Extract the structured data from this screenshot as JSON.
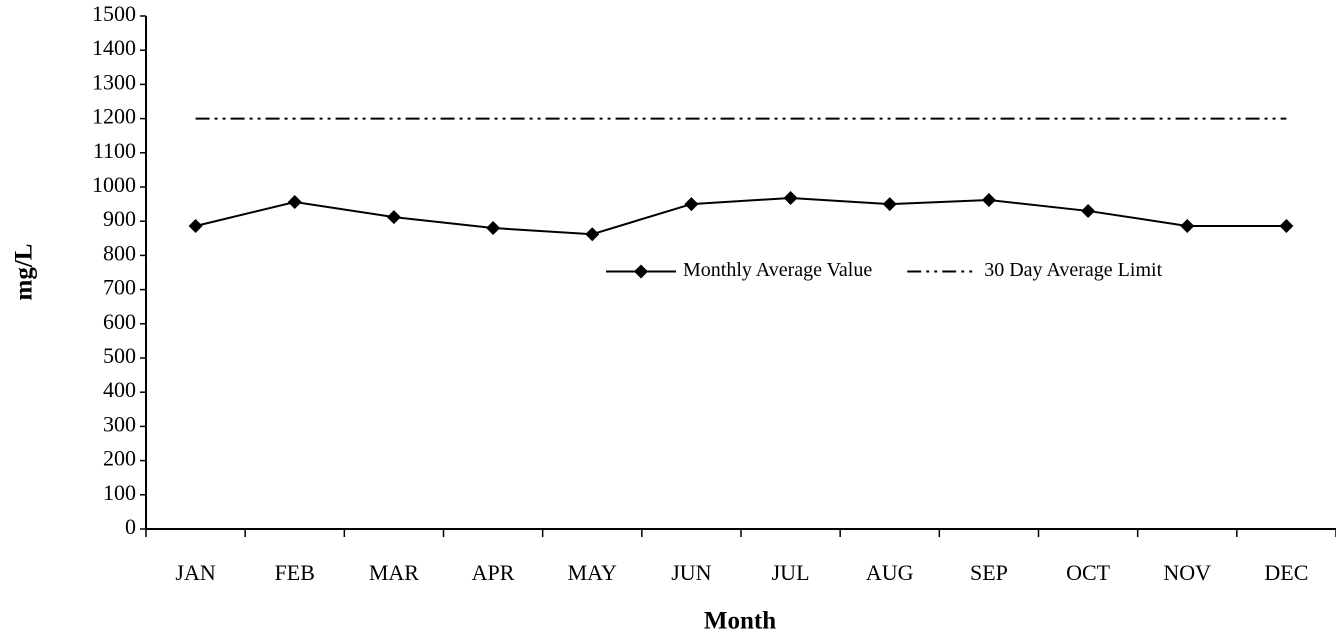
{
  "chart_data": {
    "type": "line",
    "x_label": "Month",
    "y_label": "mg/L",
    "categories": [
      "JAN",
      "FEB",
      "MAR",
      "APR",
      "MAY",
      "JUN",
      "JUL",
      "AUG",
      "SEP",
      "OCT",
      "NOV",
      "DEC"
    ],
    "series": [
      {
        "name": "Monthly Average Value",
        "color": "#000000",
        "marker": "diamond",
        "dash": "solid",
        "values": [
          886,
          956,
          912,
          880,
          862,
          950,
          968,
          950,
          962,
          930,
          886,
          886
        ]
      },
      {
        "name": "30 Day Average Limit",
        "color": "#000000",
        "marker": "none",
        "dash": "dashdot",
        "values": [
          1200,
          1200,
          1200,
          1200,
          1200,
          1200,
          1200,
          1200,
          1200,
          1200,
          1200,
          1200
        ]
      }
    ],
    "ylim": [
      0,
      1500
    ],
    "yticks": [
      0,
      100,
      200,
      300,
      400,
      500,
      600,
      700,
      800,
      900,
      1000,
      1100,
      1200,
      1300,
      1400,
      1500
    ],
    "grid": false,
    "legend": "center-right"
  }
}
